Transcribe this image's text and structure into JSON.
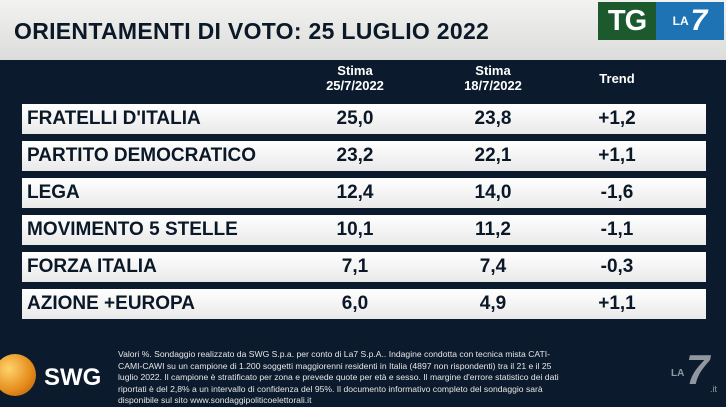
{
  "title": "ORIENTAMENTI DI VOTO: 25 LUGLIO 2022",
  "logo": {
    "tg": "TG",
    "la": "LA",
    "seven": "7"
  },
  "columns": {
    "stima1_label": "Stima",
    "stima1_date": "25/7/2022",
    "stima2_label": "Stima",
    "stima2_date": "18/7/2022",
    "trend": "Trend"
  },
  "rows": [
    {
      "party": "FRATELLI D'ITALIA",
      "stima_current": "25,0",
      "stima_previous": "23,8",
      "trend": "+1,2"
    },
    {
      "party": "PARTITO DEMOCRATICO",
      "stima_current": "23,2",
      "stima_previous": "22,1",
      "trend": "+1,1"
    },
    {
      "party": "LEGA",
      "stima_current": "12,4",
      "stima_previous": "14,0",
      "trend": "-1,6"
    },
    {
      "party": "MOVIMENTO 5 STELLE",
      "stima_current": "10,1",
      "stima_previous": "11,2",
      "trend": "-1,1"
    },
    {
      "party": "FORZA ITALIA",
      "stima_current": "7,1",
      "stima_previous": "7,4",
      "trend": "-0,3"
    },
    {
      "party": "AZIONE +EUROPA",
      "stima_current": "6,0",
      "stima_previous": "4,9",
      "trend": "+1,1"
    }
  ],
  "footnote": [
    "Valori %. Sondaggio realizzato da SWG S.p.a. per conto di La7 S.p.A.. Indagine condotta con tecnica mista CATI-",
    "CAMI-CAWI su un campione di 1.200 soggetti maggiorenni residenti in Italia (4897 non rispondenti) tra il 21 e il 25",
    "luglio 2022. Il campione è stratificato per zona e prevede quote per età e sesso. Il margine d'errore statistico dei dati",
    "riportati è del 2,8% a un intervallo di confidenza del 95%. Il documento informativo completo del sondaggio sarà",
    "disponibile sul sito www.sondaggipoliticoelettorali.it"
  ],
  "swg_logo": "SWG",
  "watermark": {
    "la": "LA",
    "seven": "7",
    "it": ".it"
  },
  "colors": {
    "background": "#0b1a2c",
    "title_bar": "#f2f2f0",
    "tg_green": "#1c5a2e",
    "la7_blue": "#1e73b4",
    "swg_orange": "#e48a1a"
  }
}
